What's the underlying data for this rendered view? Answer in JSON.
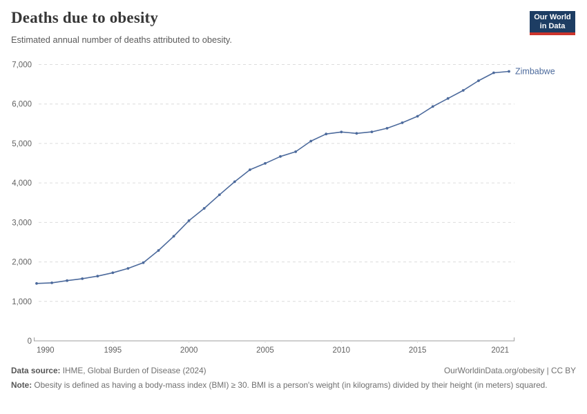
{
  "header": {
    "title": "Deaths due to obesity",
    "subtitle": "Estimated annual number of deaths attributed to obesity.",
    "logo": {
      "line1": "Our World",
      "line2": "in Data",
      "bg_color": "#1d3d63",
      "bar_color": "#cc342c"
    }
  },
  "chart_data": {
    "type": "line",
    "title": "Deaths due to obesity",
    "xlabel": "",
    "ylabel": "",
    "xlim": [
      1990,
      2021
    ],
    "ylim": [
      0,
      7000
    ],
    "x_ticks": [
      1990,
      1995,
      2000,
      2005,
      2010,
      2015,
      2021
    ],
    "y_ticks": [
      0,
      1000,
      2000,
      3000,
      4000,
      5000,
      6000,
      7000
    ],
    "grid": "horizontal-dashed",
    "legend_position": "end-of-line-label",
    "x": [
      1990,
      1991,
      1992,
      1993,
      1994,
      1995,
      1996,
      1997,
      1998,
      1999,
      2000,
      2001,
      2002,
      2003,
      2004,
      2005,
      2006,
      2007,
      2008,
      2009,
      2010,
      2011,
      2012,
      2013,
      2014,
      2015,
      2016,
      2017,
      2018,
      2019,
      2020,
      2021
    ],
    "series": [
      {
        "name": "Zimbabwe",
        "color": "#4c6a9c",
        "values": [
          1455,
          1470,
          1525,
          1575,
          1640,
          1725,
          1835,
          1980,
          2290,
          2650,
          3045,
          3355,
          3700,
          4030,
          4335,
          4495,
          4670,
          4790,
          5060,
          5240,
          5290,
          5255,
          5295,
          5385,
          5525,
          5690,
          5935,
          6140,
          6345,
          6590,
          6790,
          6825
        ]
      }
    ]
  },
  "footer": {
    "source_label": "Data source:",
    "source_text": " IHME, Global Burden of Disease (2024)",
    "link": "OurWorldinData.org/obesity | CC BY",
    "note_label": "Note:",
    "note_text": " Obesity is defined as having a body-mass index (BMI) ≥ 30. BMI is a person's weight (in kilograms) divided by their height (in meters) squared."
  },
  "colors": {
    "grid": "#dcdcdc",
    "axis": "#9e9e9e",
    "tick_text": "#616161",
    "accent": "#4c6a9c"
  }
}
